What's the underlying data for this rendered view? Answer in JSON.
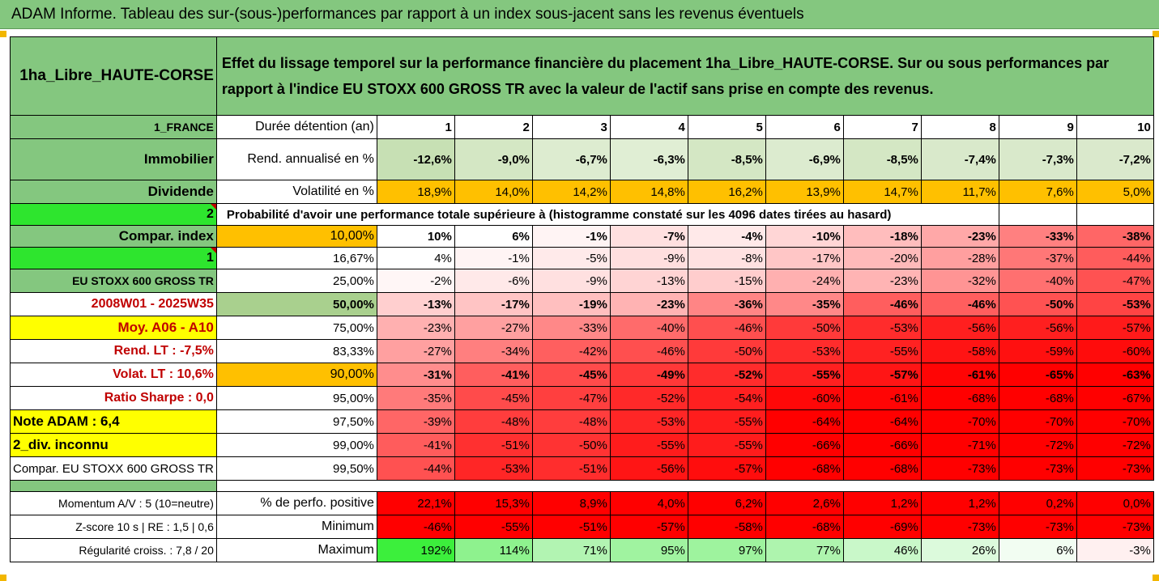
{
  "title": "ADAM Informe. Tableau des sur-(sous-)performances par rapport à un index sous-jacent sans les revenus éventuels",
  "header": {
    "name": "1ha_Libre_HAUTE-CORSE",
    "description": "Effet du lissage temporel sur la performance financière du placement 1ha_Libre_HAUTE-CORSE. Sur ou sous performances par rapport à l'indice EU STOXX 600 GROSS TR avec la valeur de l'actif sans prise en compte des revenus."
  },
  "left_labels": [
    "1_FRANCE",
    "Immobilier",
    "Dividende",
    "2",
    "Compar. index",
    "1",
    "EU STOXX 600 GROSS TR",
    "2008W01 - 2025W35",
    "Moy. A06 - A10",
    "Rend. LT :   -7,5%",
    "Volat. LT :   10,6%",
    "Ratio Sharpe :   0,0",
    "Note ADAM : 6,4",
    "2_div. inconnu",
    "Compar. EU STOXX 600 GROSS TR"
  ],
  "row_labels": {
    "duration": "Durée détention (an)",
    "return": "Rend. annualisé en %",
    "volatility": "Volatilité en %",
    "probability": "Probabilité d'avoir une performance totale supérieure à (histogramme constaté sur les 4096 dates tirées au hasard)"
  },
  "years": [
    "1",
    "2",
    "3",
    "4",
    "5",
    "6",
    "7",
    "8",
    "9",
    "10"
  ],
  "returns": [
    "-12,6%",
    "-9,0%",
    "-6,7%",
    "-6,3%",
    "-8,5%",
    "-6,9%",
    "-8,5%",
    "-7,4%",
    "-7,3%",
    "-7,2%"
  ],
  "volatilities": [
    "18,9%",
    "14,0%",
    "14,2%",
    "14,8%",
    "16,2%",
    "13,9%",
    "14,7%",
    "11,7%",
    "7,6%",
    "5,0%"
  ],
  "percentiles": [
    {
      "p": "10,00%",
      "v": [
        "10%",
        "6%",
        "-1%",
        "-7%",
        "-4%",
        "-10%",
        "-18%",
        "-23%",
        "-33%",
        "-38%"
      ]
    },
    {
      "p": "16,67%",
      "v": [
        "4%",
        "-1%",
        "-5%",
        "-9%",
        "-8%",
        "-17%",
        "-20%",
        "-28%",
        "-37%",
        "-44%"
      ]
    },
    {
      "p": "25,00%",
      "v": [
        "-2%",
        "-6%",
        "-9%",
        "-13%",
        "-15%",
        "-24%",
        "-23%",
        "-32%",
        "-40%",
        "-47%"
      ]
    },
    {
      "p": "50,00%",
      "v": [
        "-13%",
        "-17%",
        "-19%",
        "-23%",
        "-36%",
        "-35%",
        "-46%",
        "-46%",
        "-50%",
        "-53%"
      ]
    },
    {
      "p": "75,00%",
      "v": [
        "-23%",
        "-27%",
        "-33%",
        "-40%",
        "-46%",
        "-50%",
        "-53%",
        "-56%",
        "-56%",
        "-57%"
      ]
    },
    {
      "p": "83,33%",
      "v": [
        "-27%",
        "-34%",
        "-42%",
        "-46%",
        "-50%",
        "-53%",
        "-55%",
        "-58%",
        "-59%",
        "-60%"
      ]
    },
    {
      "p": "90,00%",
      "v": [
        "-31%",
        "-41%",
        "-45%",
        "-49%",
        "-52%",
        "-55%",
        "-57%",
        "-61%",
        "-65%",
        "-63%"
      ]
    },
    {
      "p": "95,00%",
      "v": [
        "-35%",
        "-45%",
        "-47%",
        "-52%",
        "-54%",
        "-60%",
        "-61%",
        "-68%",
        "-68%",
        "-67%"
      ]
    },
    {
      "p": "97,50%",
      "v": [
        "-39%",
        "-48%",
        "-48%",
        "-53%",
        "-55%",
        "-64%",
        "-64%",
        "-70%",
        "-70%",
        "-70%"
      ]
    },
    {
      "p": "99,00%",
      "v": [
        "-41%",
        "-51%",
        "-50%",
        "-55%",
        "-55%",
        "-66%",
        "-66%",
        "-71%",
        "-72%",
        "-72%"
      ]
    },
    {
      "p": "99,50%",
      "v": [
        "-44%",
        "-53%",
        "-51%",
        "-56%",
        "-57%",
        "-68%",
        "-68%",
        "-73%",
        "-73%",
        "-73%"
      ]
    }
  ],
  "footer": [
    {
      "label": "Momentum A/V : 5 (10=neutre)",
      "metric": "% de perfo. positive",
      "v": [
        "22,1%",
        "15,3%",
        "8,9%",
        "4,0%",
        "6,2%",
        "2,6%",
        "1,2%",
        "1,2%",
        "0,2%",
        "0,0%"
      ]
    },
    {
      "label": "Z-score 10 s  |  RE : 1,5  |  0,6",
      "metric": "Minimum",
      "v": [
        "-46%",
        "-55%",
        "-51%",
        "-57%",
        "-58%",
        "-68%",
        "-69%",
        "-73%",
        "-73%",
        "-73%"
      ]
    },
    {
      "label": "Régularité croiss. : 7,8 / 20",
      "metric": "Maximum",
      "v": [
        "192%",
        "114%",
        "71%",
        "95%",
        "97%",
        "77%",
        "46%",
        "26%",
        "6%",
        "-3%"
      ]
    }
  ],
  "colors": {
    "green_header": "#84c77f",
    "bright_green": "#2ee52e",
    "yellow": "#ffff00",
    "orange": "#ffc000",
    "red": "#ff0000",
    "label_red": "#c00000"
  }
}
